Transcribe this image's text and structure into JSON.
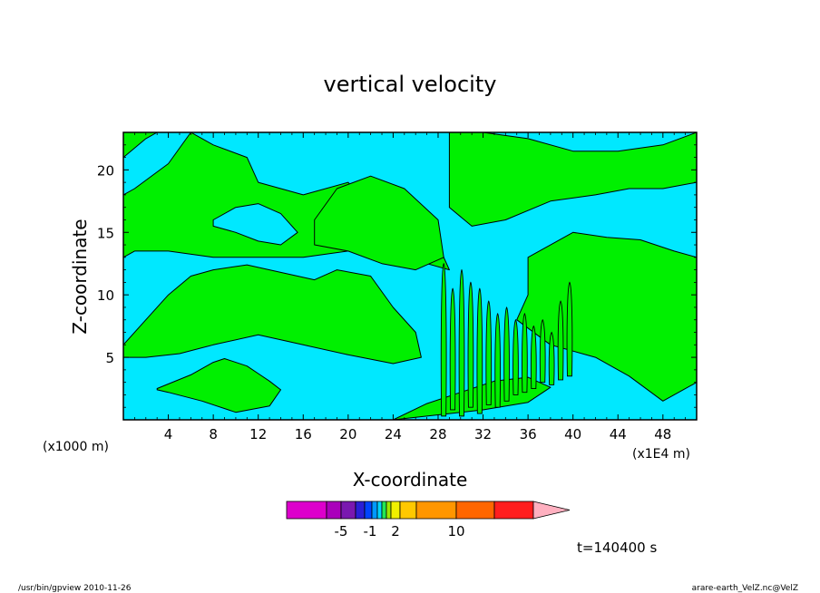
{
  "chart_data": {
    "type": "heatmap",
    "title": "vertical velocity",
    "xlabel": "X-coordinate",
    "ylabel": "Z-coordinate",
    "x_unit_left": "(x1000 m)",
    "x_unit_right": "(x1E4 m)",
    "xlim": [
      0,
      51
    ],
    "ylim": [
      0,
      23
    ],
    "xticks": [
      "4",
      "8",
      "12",
      "16",
      "20",
      "24",
      "28",
      "32",
      "36",
      "40",
      "44",
      "48"
    ],
    "yticks": [
      "5",
      "10",
      "15",
      "20"
    ],
    "xtick_values": [
      4,
      8,
      12,
      16,
      20,
      24,
      28,
      32,
      36,
      40,
      44,
      48
    ],
    "ytick_values": [
      5,
      10,
      15,
      20
    ],
    "field_colors": {
      "negative": "#00e8ff",
      "positive": "#00f000"
    },
    "regions": [
      {
        "name": "upper-left-band",
        "x": [
          0,
          0,
          6,
          8,
          11,
          12,
          16,
          20,
          22,
          24,
          26,
          28,
          29,
          27,
          24,
          20,
          16,
          12,
          8,
          4,
          1,
          0
        ],
        "y": [
          13,
          23,
          23,
          22,
          21,
          19,
          18,
          19,
          17,
          16,
          14.5,
          14,
          12,
          12.5,
          13.5,
          13.5,
          13,
          13,
          13,
          13.5,
          13.5,
          13
        ]
      },
      {
        "name": "left-upper-strip",
        "x": [
          0,
          2,
          3,
          6,
          4,
          1,
          0
        ],
        "y": [
          21,
          22.5,
          23,
          23,
          20.5,
          18.5,
          18
        ],
        "neg": true
      },
      {
        "name": "mid-lens",
        "x": [
          8,
          10,
          12,
          14,
          15.5,
          14,
          12,
          10,
          8
        ],
        "y": [
          16,
          17,
          17.3,
          16.5,
          15,
          14,
          14.3,
          15,
          15.5
        ],
        "neg": true
      },
      {
        "name": "lower-band",
        "x": [
          0,
          2,
          4,
          6,
          8,
          11,
          14,
          17,
          19,
          22,
          24,
          26,
          26.5,
          24,
          20,
          16,
          12,
          8,
          5,
          2,
          0
        ],
        "y": [
          6,
          8,
          10,
          11.5,
          12,
          12.4,
          11.8,
          11.2,
          12,
          11.5,
          9,
          7,
          5,
          4.5,
          5.2,
          6,
          6.8,
          6,
          5.3,
          5,
          5
        ]
      },
      {
        "name": "center-bulge",
        "x": [
          17,
          19,
          22,
          25,
          28,
          28.5,
          26,
          23,
          20,
          17
        ],
        "y": [
          16,
          18.5,
          19.5,
          18.5,
          16,
          13,
          12,
          12.5,
          13.5,
          14
        ]
      },
      {
        "name": "right-upper-band",
        "x": [
          29,
          32,
          36,
          40,
          44,
          48,
          51,
          51,
          48,
          45,
          42,
          38,
          34,
          31,
          29
        ],
        "y": [
          23,
          23,
          22.5,
          21.5,
          21.5,
          22,
          23,
          19,
          18.5,
          18.5,
          18,
          17.5,
          16,
          15.5,
          17
        ]
      },
      {
        "name": "right-mid-block",
        "x": [
          36,
          40,
          43,
          46,
          49,
          51,
          51,
          48,
          45,
          42,
          38,
          35,
          36
        ],
        "y": [
          13,
          15,
          14.6,
          14.4,
          13.5,
          13,
          3,
          1.5,
          3.5,
          5,
          6,
          8,
          10
        ]
      },
      {
        "name": "lower-left-patch",
        "x": [
          3,
          6,
          8,
          9,
          11,
          12,
          13,
          14,
          13,
          10,
          7,
          4,
          3
        ],
        "y": [
          2.5,
          3.6,
          4.6,
          4.9,
          4.3,
          3.7,
          3.1,
          2.4,
          1.1,
          0.6,
          1.5,
          2.2,
          2.4
        ]
      },
      {
        "name": "bottom-right",
        "x": [
          24,
          27,
          30,
          33,
          36,
          38,
          36,
          32,
          28,
          25,
          24
        ],
        "y": [
          0,
          1.3,
          2.2,
          3.1,
          3.4,
          2.6,
          1.4,
          0.8,
          0.4,
          0.1,
          0
        ]
      }
    ],
    "stripes": [
      {
        "x": 28.5,
        "y0": 0.3,
        "y1": 12.5
      },
      {
        "x": 29.3,
        "y0": 0.8,
        "y1": 10.5
      },
      {
        "x": 30.1,
        "y0": 0.3,
        "y1": 12
      },
      {
        "x": 30.9,
        "y0": 1,
        "y1": 11
      },
      {
        "x": 31.7,
        "y0": 0.5,
        "y1": 10.5
      },
      {
        "x": 32.5,
        "y0": 1.2,
        "y1": 9.5
      },
      {
        "x": 33.3,
        "y0": 1,
        "y1": 8.5
      },
      {
        "x": 34.1,
        "y0": 1.5,
        "y1": 9
      },
      {
        "x": 34.9,
        "y0": 2,
        "y1": 8
      },
      {
        "x": 35.7,
        "y0": 2.2,
        "y1": 8.5
      },
      {
        "x": 36.5,
        "y0": 2.5,
        "y1": 7.5
      },
      {
        "x": 37.3,
        "y0": 3,
        "y1": 8
      },
      {
        "x": 38.1,
        "y0": 2.8,
        "y1": 7
      },
      {
        "x": 38.9,
        "y0": 3.2,
        "y1": 9.5
      },
      {
        "x": 39.7,
        "y0": 3.5,
        "y1": 11
      }
    ],
    "colorbar": {
      "tick_labels": [
        "-5",
        "-1",
        "2",
        "10"
      ],
      "colors": [
        "#dd00cc",
        "#aa00bb",
        "#7a18b0",
        "#2a1fd6",
        "#0044ff",
        "#0099ff",
        "#00d4ff",
        "#22e855",
        "#9ae800",
        "#f0f000",
        "#ffc800",
        "#ff9600",
        "#ff6600",
        "#ff1e1e",
        "#ff7a7a",
        "#ffb0c0"
      ]
    },
    "time_label": "t=140400 s"
  },
  "footer": {
    "left": "/usr/bin/gpview   2010-11-26",
    "right": "arare-earth_VelZ.nc@VelZ"
  }
}
